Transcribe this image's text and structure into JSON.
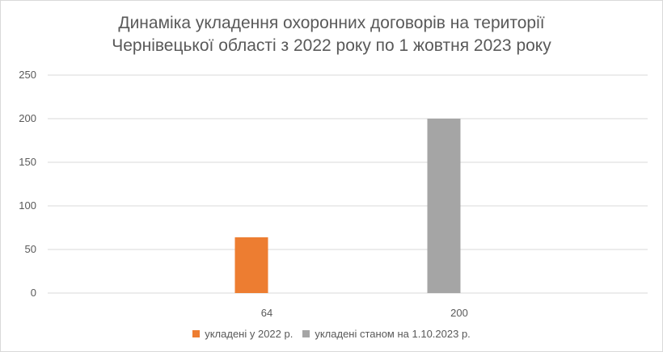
{
  "chart_data": {
    "type": "bar",
    "title_lines": [
      "Динаміка укладення охоронних договорів на території",
      "Чернівецької області з 2022 року по 1 жовтня 2023 року"
    ],
    "categories": [
      "64",
      "200"
    ],
    "series": [
      {
        "name": "укладені у 2022 р.",
        "color": "#ed7d31",
        "values": [
          64,
          null
        ]
      },
      {
        "name": "укладені станом на 1.10.2023 р.",
        "color": "#a5a5a5",
        "values": [
          null,
          200
        ]
      }
    ],
    "ylim": [
      0,
      250
    ],
    "yticks": [
      0,
      50,
      100,
      150,
      200,
      250
    ],
    "grid": true,
    "legend_position": "bottom"
  }
}
